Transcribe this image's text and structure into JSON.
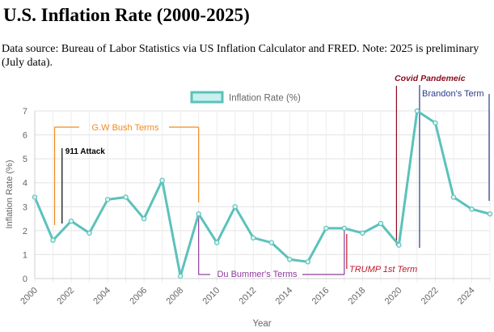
{
  "page": {
    "title": "U.S. Inflation Rate (2000-2025)",
    "source_note": "Data source: Bureau of Labor Statistics via US Inflation Calculator and FRED. Note: 2025 is preliminary (July data)."
  },
  "chart_data": {
    "type": "line",
    "title": "U.S. Inflation Rate (2000-2025)",
    "xlabel": "Year",
    "ylabel": "Inflation Rate (%)",
    "xlim": [
      2000,
      2025
    ],
    "ylim": [
      0,
      7
    ],
    "grid": true,
    "legend_position": "top-center",
    "x": [
      2000,
      2001,
      2002,
      2003,
      2004,
      2005,
      2006,
      2007,
      2008,
      2009,
      2010,
      2011,
      2012,
      2013,
      2014,
      2015,
      2016,
      2017,
      2018,
      2019,
      2020,
      2021,
      2022,
      2023,
      2024,
      2025
    ],
    "x_tick_labels": [
      "2000",
      "2002",
      "2004",
      "2006",
      "2008",
      "2010",
      "2012",
      "2014",
      "2016",
      "2018",
      "2020",
      "2022",
      "2024"
    ],
    "y_tick_labels": [
      "0",
      "1",
      "2",
      "3",
      "4",
      "5",
      "6",
      "7"
    ],
    "series": [
      {
        "name": "Inflation Rate (%)",
        "color": "#5bc2bb",
        "values": [
          3.4,
          1.6,
          2.4,
          1.9,
          3.3,
          3.4,
          2.5,
          4.1,
          0.1,
          2.7,
          1.5,
          3.0,
          1.7,
          1.5,
          0.8,
          0.7,
          2.1,
          2.1,
          1.9,
          2.3,
          1.4,
          7.0,
          6.5,
          3.4,
          2.9,
          2.7
        ]
      }
    ],
    "annotations": [
      {
        "id": "bush",
        "label": "G.W Bush Terms",
        "start": 2001,
        "end": 2009,
        "color": "#f28a1e"
      },
      {
        "id": "attack",
        "label": "911 Attack",
        "year": 2001.5,
        "color": "#000000"
      },
      {
        "id": "bummer",
        "label": "Du Bummer's Terms",
        "start": 2009,
        "end": 2017,
        "color": "#8e3b9c"
      },
      {
        "id": "trump",
        "label": "TRUMP 1st Term",
        "start": 2017,
        "end": 2021,
        "color": "#c0192b"
      },
      {
        "id": "covid",
        "label": "Covid Pandemeic",
        "year": 2020,
        "color": "#8b0a1e"
      },
      {
        "id": "brandon",
        "label": "Brandon's Term",
        "start": 2021,
        "end": 2025,
        "color": "#2b3a8c"
      }
    ]
  }
}
